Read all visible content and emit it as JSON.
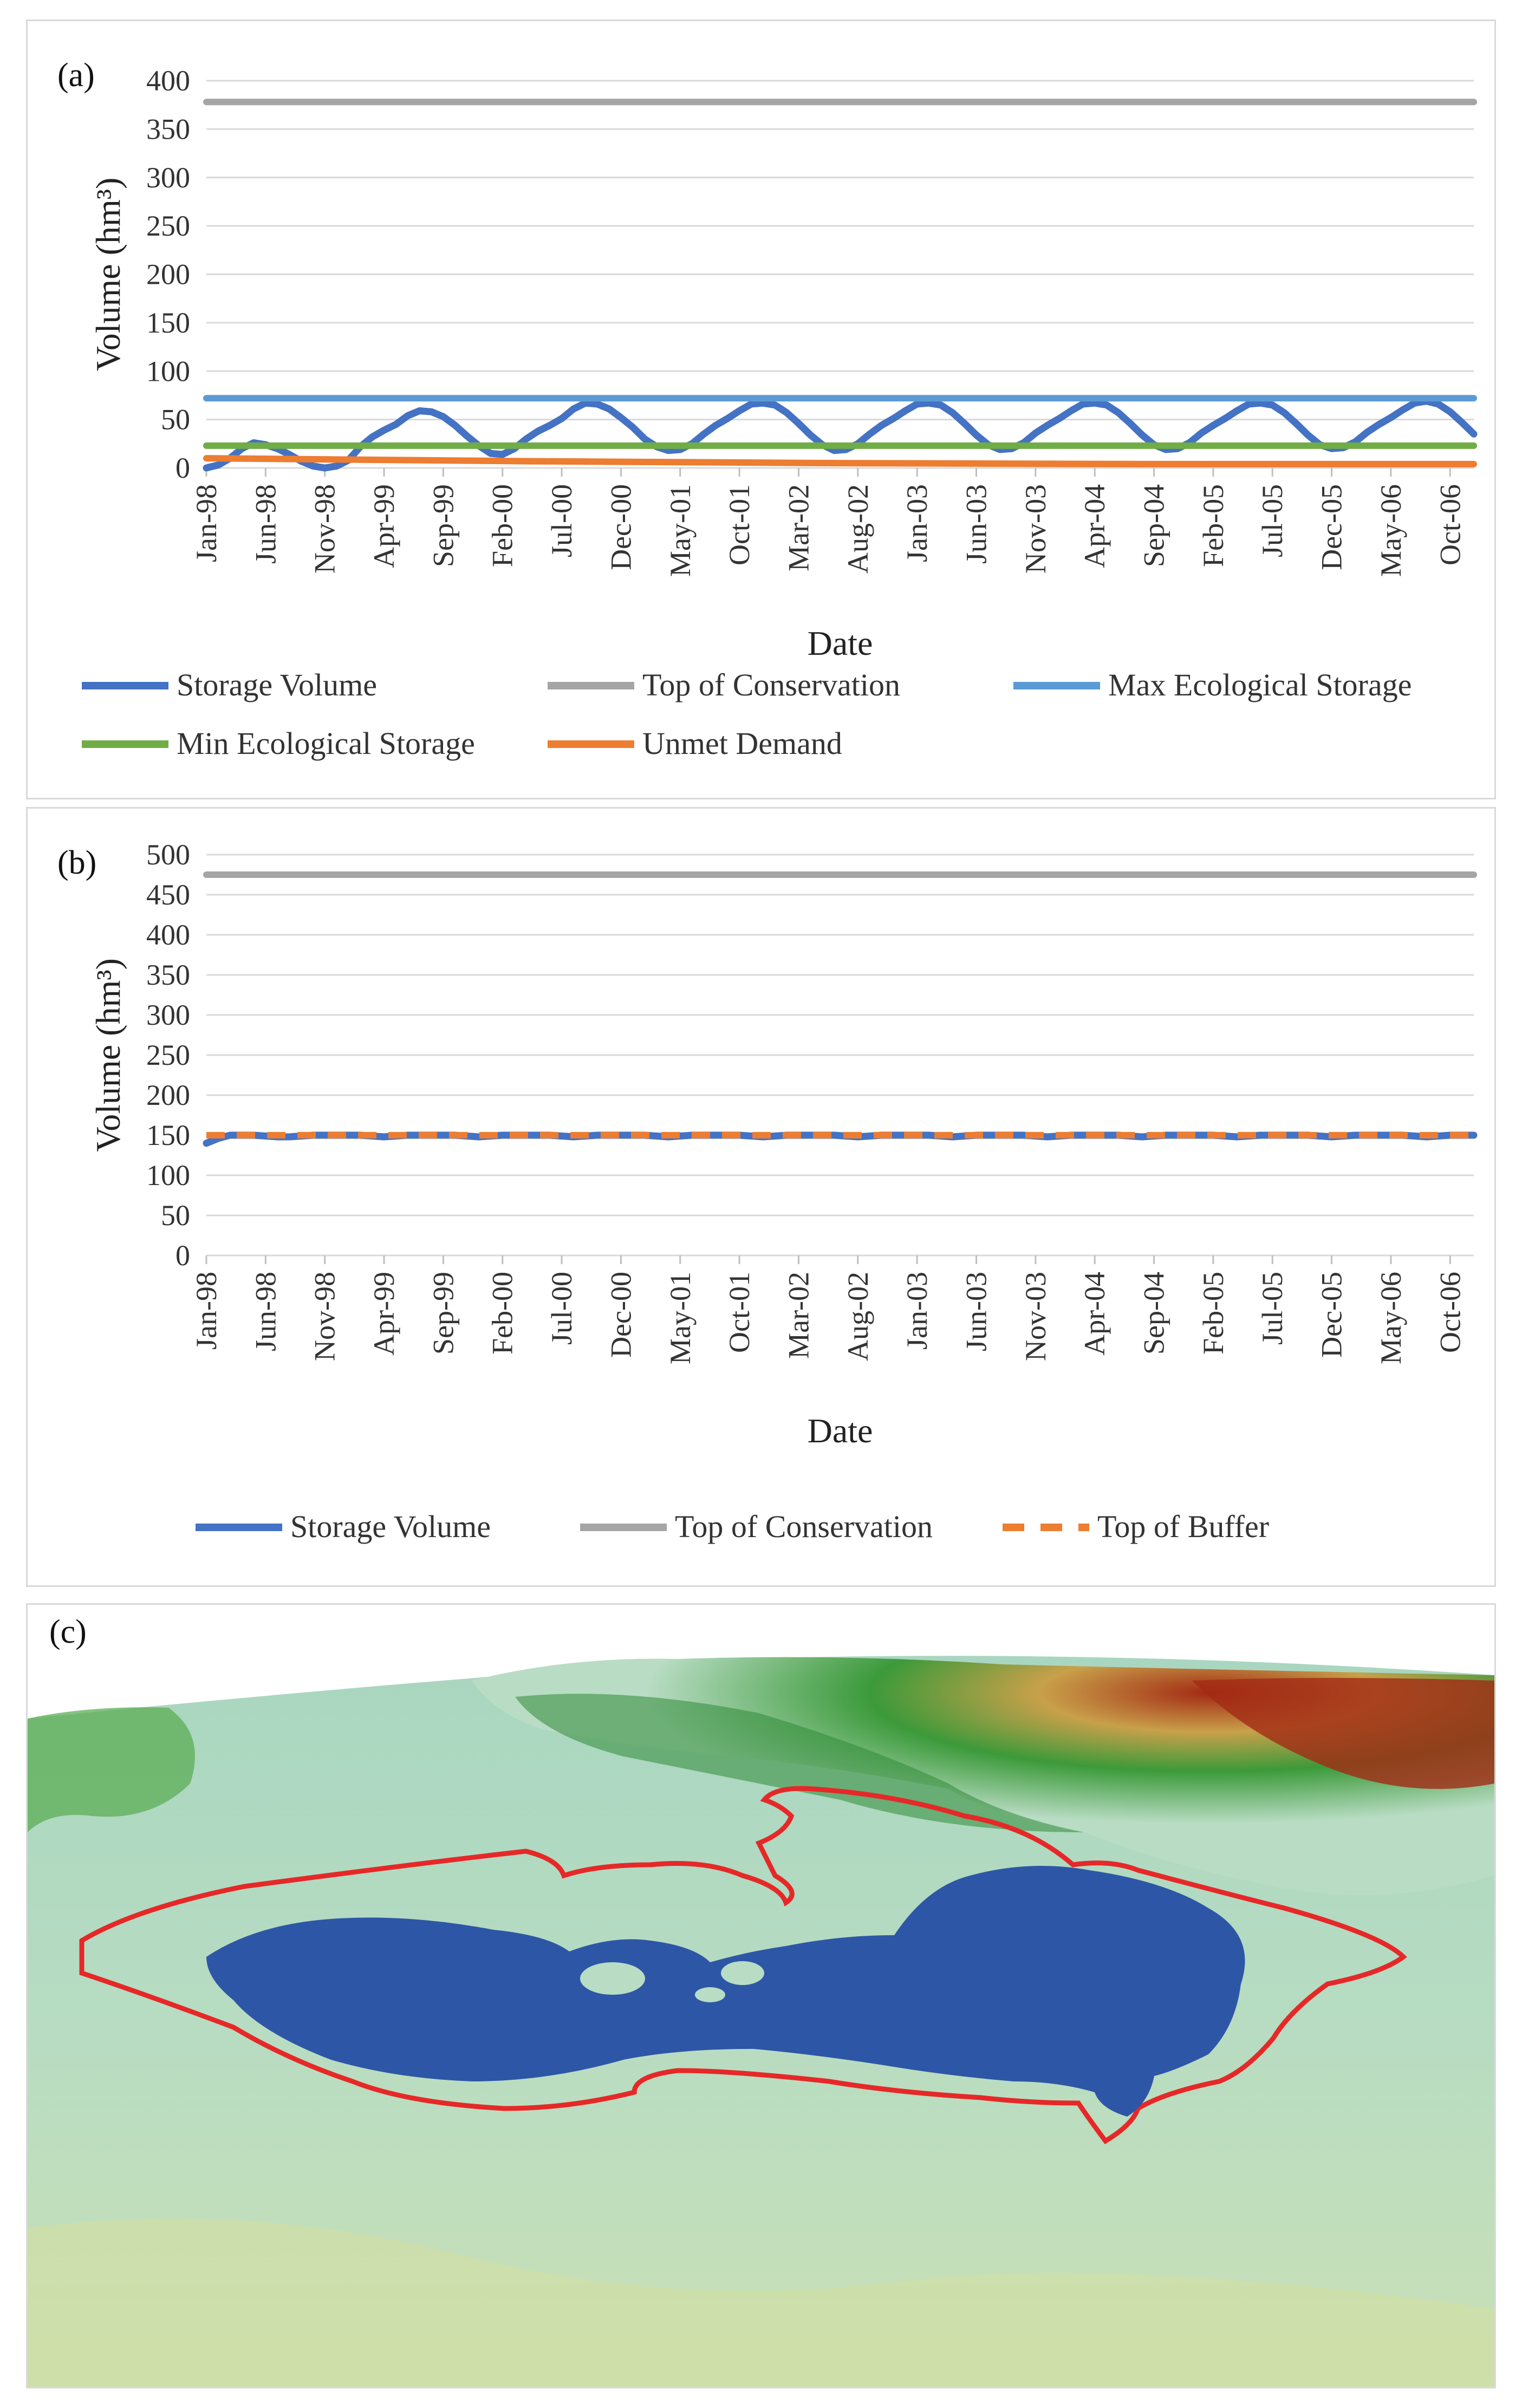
{
  "chart_data": [
    {
      "id": "a",
      "type": "line",
      "panel_label": "(a)",
      "xlabel": "Date",
      "ylabel": "Volume (hm³)",
      "ylim": [
        0,
        400
      ],
      "yticks": [
        0,
        50,
        100,
        150,
        200,
        250,
        300,
        350,
        400
      ],
      "x_tick_labels": [
        "Jan-98",
        "Jun-98",
        "Nov-98",
        "Apr-99",
        "Sep-99",
        "Feb-00",
        "Jul-00",
        "Dec-00",
        "May-01",
        "Oct-01",
        "Mar-02",
        "Aug-02",
        "Jan-03",
        "Jun-03",
        "Nov-03",
        "Apr-04",
        "Sep-04",
        "Feb-05",
        "Jul-05",
        "Dec-05",
        "May-06",
        "Oct-06"
      ],
      "x_tick_step_months": 5,
      "months": 108,
      "grid": true,
      "legend_position": "bottom",
      "series": [
        {
          "name": "Storage Volume",
          "color": "#4472c4",
          "style": "solid",
          "values": [
            0,
            3,
            10,
            20,
            26,
            24,
            20,
            14,
            7,
            2,
            0,
            2,
            8,
            22,
            32,
            39,
            45,
            54,
            59,
            58,
            53,
            44,
            33,
            23,
            15,
            14,
            20,
            30,
            38,
            44,
            51,
            61,
            67,
            66,
            61,
            52,
            42,
            30,
            22,
            18,
            19,
            25,
            35,
            44,
            51,
            59,
            66,
            67,
            65,
            57,
            46,
            34,
            24,
            18,
            19,
            25,
            35,
            44,
            51,
            59,
            66,
            67,
            65,
            57,
            46,
            34,
            24,
            19,
            20,
            26,
            36,
            44,
            51,
            59,
            66,
            67,
            65,
            57,
            46,
            34,
            24,
            19,
            20,
            26,
            36,
            44,
            51,
            59,
            66,
            67,
            65,
            57,
            46,
            34,
            24,
            20,
            21,
            27,
            37,
            45,
            52,
            60,
            67,
            69,
            66,
            58,
            47,
            35
          ]
        },
        {
          "name": "Top of Conservation",
          "color": "#a5a5a5",
          "style": "solid",
          "values": [
            378,
            378
          ]
        },
        {
          "name": "Max Ecological Storage",
          "color": "#5b9bd5",
          "style": "solid",
          "values": [
            72,
            72
          ]
        },
        {
          "name": "Min Ecological Storage",
          "color": "#70ad47",
          "style": "solid",
          "values": [
            23,
            23
          ]
        },
        {
          "name": "Unmet Demand",
          "color": "#ed7d31",
          "style": "solid",
          "values": [
            10,
            7,
            5,
            4,
            4
          ]
        }
      ]
    },
    {
      "id": "b",
      "type": "line",
      "panel_label": "(b)",
      "xlabel": "Date",
      "ylabel": "Volume (hm³)",
      "ylim": [
        0,
        500
      ],
      "yticks": [
        0,
        50,
        100,
        150,
        200,
        250,
        300,
        350,
        400,
        450,
        500
      ],
      "x_tick_labels": [
        "Jan-98",
        "Jun-98",
        "Nov-98",
        "Apr-99",
        "Sep-99",
        "Feb-00",
        "Jul-00",
        "Dec-00",
        "May-01",
        "Oct-01",
        "Mar-02",
        "Aug-02",
        "Jan-03",
        "Jun-03",
        "Nov-03",
        "Apr-04",
        "Sep-04",
        "Feb-05",
        "Jul-05",
        "Dec-05",
        "May-06",
        "Oct-06"
      ],
      "x_tick_step_months": 5,
      "months": 108,
      "grid": true,
      "legend_position": "bottom",
      "series": [
        {
          "name": "Storage Volume",
          "color": "#4472c4",
          "style": "solid",
          "values": [
            140,
            146,
            150,
            150,
            150,
            149,
            148,
            148,
            149,
            150,
            150,
            150,
            150,
            150,
            149,
            148,
            149,
            150,
            150,
            150,
            150,
            150,
            149,
            148,
            149,
            150,
            150,
            150,
            150,
            150,
            149,
            148,
            149,
            150,
            150,
            150,
            150,
            150,
            149,
            148,
            149,
            150,
            150,
            150,
            150,
            150,
            149,
            148,
            149,
            150,
            150,
            150,
            150,
            150,
            149,
            148,
            149,
            150,
            150,
            150,
            150,
            150,
            149,
            148,
            149,
            150,
            150,
            150,
            150,
            150,
            149,
            148,
            149,
            150,
            150,
            150,
            150,
            150,
            149,
            148,
            149,
            150,
            150,
            150,
            150,
            150,
            149,
            148,
            149,
            150,
            150,
            150,
            150,
            150,
            149,
            148,
            149,
            150,
            150,
            150,
            150,
            150,
            149,
            148,
            149,
            150,
            150,
            150
          ]
        },
        {
          "name": "Top of Conservation",
          "color": "#a5a5a5",
          "style": "solid",
          "values": [
            475,
            475
          ]
        },
        {
          "name": "Top of Buffer",
          "color": "#ed7d31",
          "style": "dashed",
          "values": [
            150,
            150
          ]
        }
      ]
    }
  ],
  "map": {
    "panel_label": "(c)",
    "colors": {
      "water": "#2e56a6",
      "outline": "#e62828",
      "lowland": "#b9dcc4",
      "forest": "#3c9a3a",
      "highland": "#c8a04a",
      "peak": "#a32a14"
    }
  }
}
